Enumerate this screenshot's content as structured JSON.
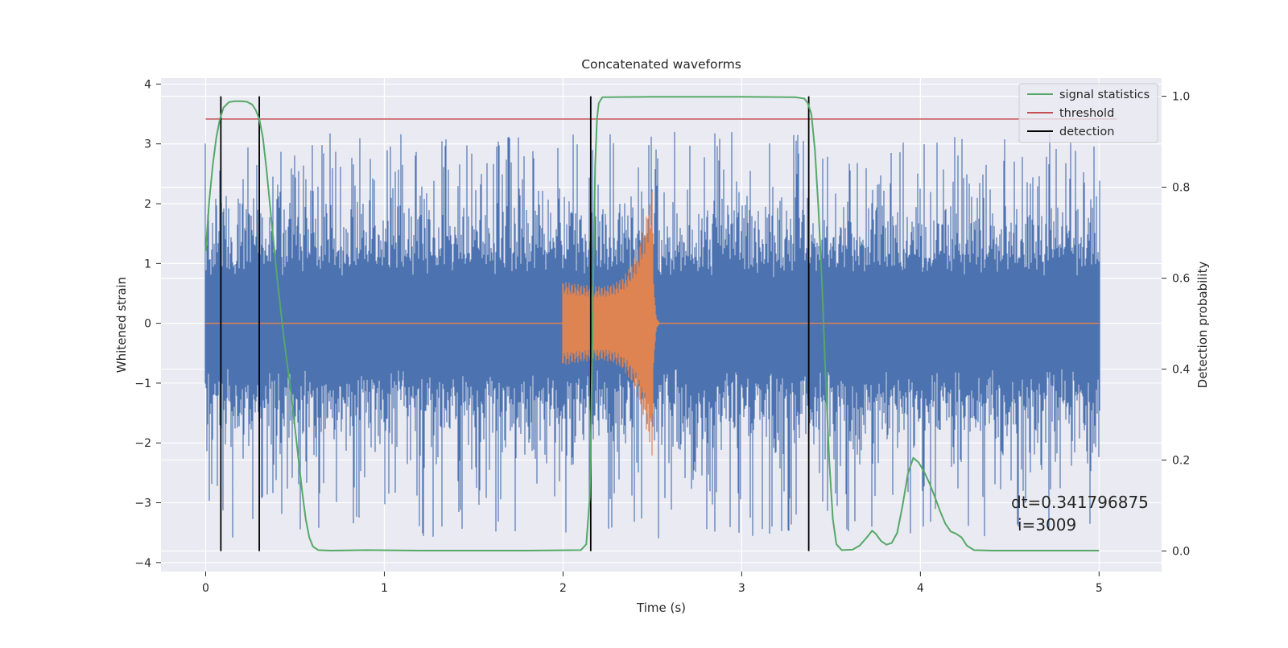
{
  "chart_data": {
    "type": "line",
    "title": "Concatenated waveforms",
    "xlabel": "Time (s)",
    "ylabel": "Whitened strain",
    "y2label": "Detection probability",
    "xlim": [
      -0.25,
      5.35
    ],
    "ylim": [
      -4.15,
      4.1
    ],
    "y2lim": [
      -0.045,
      1.04
    ],
    "xticks": [
      "0",
      "1",
      "2",
      "3",
      "4",
      "5"
    ],
    "yticks": [
      "4",
      "3",
      "2",
      "1",
      "0",
      "−1",
      "−2",
      "−3",
      "−4"
    ],
    "y2ticks": [
      "1.0",
      "0.8",
      "0.6",
      "0.4",
      "0.2",
      "0.0"
    ],
    "grid": true,
    "legend_position": "top-right",
    "legend": [
      "signal statistics",
      "threshold",
      "detection"
    ],
    "series": [
      {
        "name": "whitened strain (noise)",
        "color": "#4c72b0",
        "x_range": [
          0,
          5
        ],
        "envelope": {
          "typical_abs": 0.75,
          "spike_max": 3.3,
          "spike_min": -3.8
        }
      },
      {
        "name": "injected chirp",
        "color": "#dd8452",
        "x_range": [
          2.0,
          2.5
        ],
        "envelope": {
          "start_amp": 0.7,
          "peak_amp": 2.3,
          "peak_x": 2.5,
          "ringdown_end": 2.55
        }
      },
      {
        "name": "signal statistics",
        "color": "#55a868",
        "axis": "right",
        "points": [
          [
            0.0,
            0.66
          ],
          [
            0.02,
            0.77
          ],
          [
            0.04,
            0.85
          ],
          [
            0.06,
            0.91
          ],
          [
            0.08,
            0.95
          ],
          [
            0.1,
            0.975
          ],
          [
            0.13,
            0.987
          ],
          [
            0.16,
            0.989
          ],
          [
            0.2,
            0.989
          ],
          [
            0.23,
            0.988
          ],
          [
            0.26,
            0.982
          ],
          [
            0.28,
            0.97
          ],
          [
            0.3,
            0.95
          ],
          [
            0.32,
            0.91
          ],
          [
            0.34,
            0.84
          ],
          [
            0.36,
            0.76
          ],
          [
            0.38,
            0.68
          ],
          [
            0.4,
            0.6
          ],
          [
            0.42,
            0.53
          ],
          [
            0.44,
            0.46
          ],
          [
            0.46,
            0.4
          ],
          [
            0.48,
            0.34
          ],
          [
            0.5,
            0.27
          ],
          [
            0.52,
            0.2
          ],
          [
            0.54,
            0.13
          ],
          [
            0.56,
            0.07
          ],
          [
            0.58,
            0.03
          ],
          [
            0.6,
            0.01
          ],
          [
            0.63,
            0.002
          ],
          [
            0.7,
            0.001
          ],
          [
            0.9,
            0.002
          ],
          [
            1.2,
            0.001
          ],
          [
            1.5,
            0.001
          ],
          [
            1.8,
            0.001
          ],
          [
            2.1,
            0.002
          ],
          [
            2.13,
            0.015
          ],
          [
            2.15,
            0.12
          ],
          [
            2.16,
            0.35
          ],
          [
            2.17,
            0.62
          ],
          [
            2.18,
            0.85
          ],
          [
            2.19,
            0.95
          ],
          [
            2.2,
            0.985
          ],
          [
            2.22,
            0.998
          ],
          [
            2.5,
            0.999
          ],
          [
            3.0,
            0.999
          ],
          [
            3.3,
            0.998
          ],
          [
            3.35,
            0.995
          ],
          [
            3.37,
            0.985
          ],
          [
            3.39,
            0.96
          ],
          [
            3.41,
            0.88
          ],
          [
            3.43,
            0.75
          ],
          [
            3.45,
            0.58
          ],
          [
            3.47,
            0.38
          ],
          [
            3.49,
            0.2
          ],
          [
            3.51,
            0.07
          ],
          [
            3.53,
            0.015
          ],
          [
            3.56,
            0.002
          ],
          [
            3.62,
            0.003
          ],
          [
            3.66,
            0.012
          ],
          [
            3.7,
            0.03
          ],
          [
            3.73,
            0.045
          ],
          [
            3.75,
            0.038
          ],
          [
            3.78,
            0.022
          ],
          [
            3.81,
            0.014
          ],
          [
            3.84,
            0.018
          ],
          [
            3.87,
            0.04
          ],
          [
            3.9,
            0.1
          ],
          [
            3.93,
            0.17
          ],
          [
            3.96,
            0.205
          ],
          [
            3.99,
            0.195
          ],
          [
            4.02,
            0.175
          ],
          [
            4.05,
            0.15
          ],
          [
            4.08,
            0.12
          ],
          [
            4.11,
            0.088
          ],
          [
            4.14,
            0.06
          ],
          [
            4.17,
            0.043
          ],
          [
            4.2,
            0.038
          ],
          [
            4.23,
            0.03
          ],
          [
            4.26,
            0.012
          ],
          [
            4.3,
            0.002
          ],
          [
            4.4,
            0.001
          ],
          [
            5.0,
            0.001
          ]
        ]
      },
      {
        "name": "threshold",
        "color": "#c44e52",
        "axis": "right",
        "y": 0.95,
        "x_range": [
          0,
          5.1
        ]
      },
      {
        "name": "detection",
        "color": "#000000",
        "axis": "right",
        "x": [
          0.085,
          0.3,
          2.155,
          3.375
        ],
        "y_range": [
          0.0,
          1.0
        ]
      }
    ],
    "annotations": [
      "dt=0.341796875",
      "i=3009"
    ]
  }
}
